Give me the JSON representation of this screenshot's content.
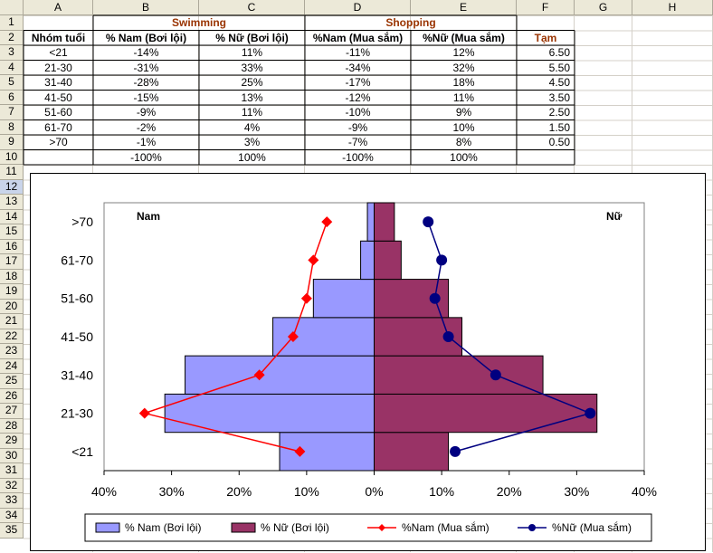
{
  "columns": [
    "A",
    "B",
    "C",
    "D",
    "E",
    "F",
    "G",
    "H"
  ],
  "rows": [
    "1",
    "2",
    "3",
    "4",
    "5",
    "6",
    "7",
    "8",
    "9",
    "10",
    "11",
    "12",
    "13",
    "14",
    "15",
    "16",
    "17",
    "18",
    "19",
    "20",
    "21",
    "22",
    "23",
    "24",
    "25",
    "26",
    "27",
    "28",
    "29",
    "30",
    "31",
    "32",
    "33",
    "34",
    "35"
  ],
  "sheet": {
    "group_swimming": "Swimming",
    "group_shopping": "Shopping",
    "headers": [
      "Nhóm tuổi",
      "% Nam (Bơi lội)",
      "% Nữ (Bơi lội)",
      "%Nam (Mua sắm)",
      "%Nữ (Mua sắm)",
      "Tạm"
    ],
    "data": [
      [
        "<21",
        "-14%",
        "11%",
        "-11%",
        "12%",
        "6.50"
      ],
      [
        "21-30",
        "-31%",
        "33%",
        "-34%",
        "32%",
        "5.50"
      ],
      [
        "31-40",
        "-28%",
        "25%",
        "-17%",
        "18%",
        "4.50"
      ],
      [
        "41-50",
        "-15%",
        "13%",
        "-12%",
        "11%",
        "3.50"
      ],
      [
        "51-60",
        "-9%",
        "11%",
        "-10%",
        "9%",
        "2.50"
      ],
      [
        "61-70",
        "-2%",
        "4%",
        "-9%",
        "10%",
        "1.50"
      ],
      [
        ">70",
        "-1%",
        "3%",
        "-7%",
        "8%",
        "0.50"
      ],
      [
        "",
        "-100%",
        "100%",
        "-100%",
        "100%",
        ""
      ]
    ]
  },
  "colors": {
    "bar_nam": "#9999ff",
    "bar_nu": "#993366",
    "line_nam": "#ff0000",
    "line_nu": "#000080",
    "header_brown": "#993300",
    "selected_row": "#c9d4ea"
  },
  "chart_data": {
    "type": "bar",
    "orientation": "horizontal",
    "categories": [
      "<21",
      "21-30",
      "31-40",
      "41-50",
      "51-60",
      "61-70",
      ">70"
    ],
    "series": [
      {
        "name": "% Nam (Bơi lội)",
        "type": "bar",
        "values": [
          -14,
          -31,
          -28,
          -15,
          -9,
          -2,
          -1
        ]
      },
      {
        "name": "% Nữ (Bơi lội)",
        "type": "bar",
        "values": [
          11,
          33,
          25,
          13,
          11,
          4,
          3
        ]
      },
      {
        "name": "%Nam (Mua sắm)",
        "type": "line",
        "marker": "diamond",
        "values": [
          -11,
          -34,
          -17,
          -12,
          -10,
          -9,
          -7
        ]
      },
      {
        "name": "%Nữ (Mua sắm)",
        "type": "line",
        "marker": "circle",
        "values": [
          12,
          32,
          18,
          11,
          9,
          10,
          8
        ]
      }
    ],
    "xlim": [
      -40,
      40
    ],
    "xticks": [
      -40,
      -30,
      -20,
      -10,
      0,
      10,
      20,
      30,
      40
    ],
    "xtick_labels": [
      "40%",
      "30%",
      "20%",
      "10%",
      "0%",
      "10%",
      "20%",
      "30%",
      "40%"
    ],
    "annotations": {
      "left": "Nam",
      "right": "Nữ"
    },
    "legend_position": "bottom",
    "grid": false
  }
}
